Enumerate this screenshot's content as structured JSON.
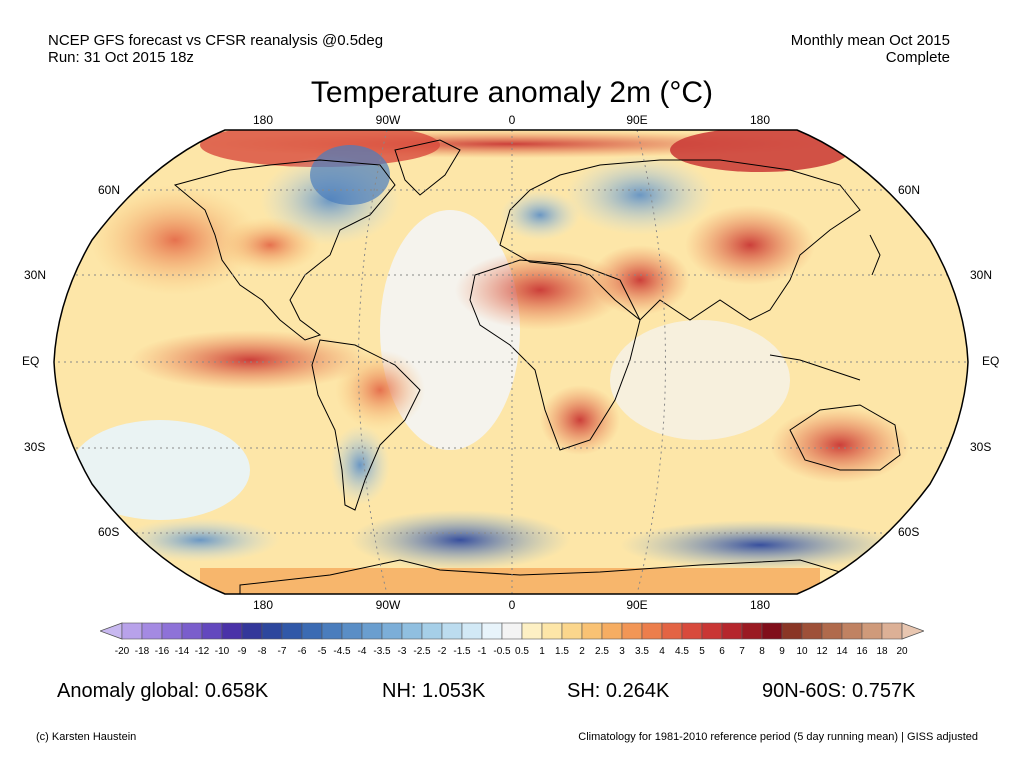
{
  "header": {
    "left_line1": "NCEP GFS forecast vs CFSR reanalysis @0.5deg",
    "left_line2": "Run: 31 Oct 2015 18z",
    "right_line1": "Monthly mean Oct 2015",
    "right_line2": "Complete"
  },
  "title": "Temperature anomaly 2m (°C)",
  "map": {
    "lon_labels": [
      "180",
      "90W",
      "0",
      "90E",
      "180"
    ],
    "lat_labels": [
      "60N",
      "30N",
      "EQ",
      "30S",
      "60S"
    ],
    "projection": "robinson"
  },
  "colorbar": {
    "labels": [
      "-20",
      "-18",
      "-16",
      "-14",
      "-12",
      "-10",
      "-9",
      "-8",
      "-7",
      "-6",
      "-5",
      "-4.5",
      "-4",
      "-3.5",
      "-3",
      "-2.5",
      "-2",
      "-1.5",
      "-1",
      "-0.5",
      "0.5",
      "1",
      "1.5",
      "2",
      "2.5",
      "3",
      "3.5",
      "4",
      "4.5",
      "5",
      "6",
      "7",
      "8",
      "9",
      "10",
      "12",
      "14",
      "16",
      "18",
      "20"
    ],
    "colors": [
      "#c8b8f0",
      "#b8a2ea",
      "#a48ae2",
      "#8e72d8",
      "#7a5ecc",
      "#6348be",
      "#4a32a8",
      "#33379a",
      "#2d479d",
      "#3058a8",
      "#3b6bb3",
      "#4a7dbd",
      "#5a8ec6",
      "#6a9ecf",
      "#7caed8",
      "#90bfe0",
      "#a6cfe8",
      "#bcdcef",
      "#d2e9f6",
      "#e8f4fb",
      "#f4f4f4",
      "#fdf0c4",
      "#fde6a8",
      "#fbd68c",
      "#f9c274",
      "#f6ad62",
      "#f29656",
      "#ec7e4c",
      "#e36444",
      "#d84a3c",
      "#c93634",
      "#b5262c",
      "#9a1a22",
      "#800e1a",
      "#8a3626",
      "#9e5038",
      "#b06a4c",
      "#c08262",
      "#cf9a7a",
      "#dcb096",
      "#e8c6b0"
    ]
  },
  "stats": {
    "global": "Anomaly global: 0.658K",
    "nh": "NH: 1.053K",
    "sh": "SH: 0.264K",
    "arctic": "90N-60S: 0.757K"
  },
  "footer": {
    "credit": "(c) Karsten Haustein",
    "note": "Climatology for 1981-2010 reference period (5 day running mean) | GISS adjusted"
  }
}
